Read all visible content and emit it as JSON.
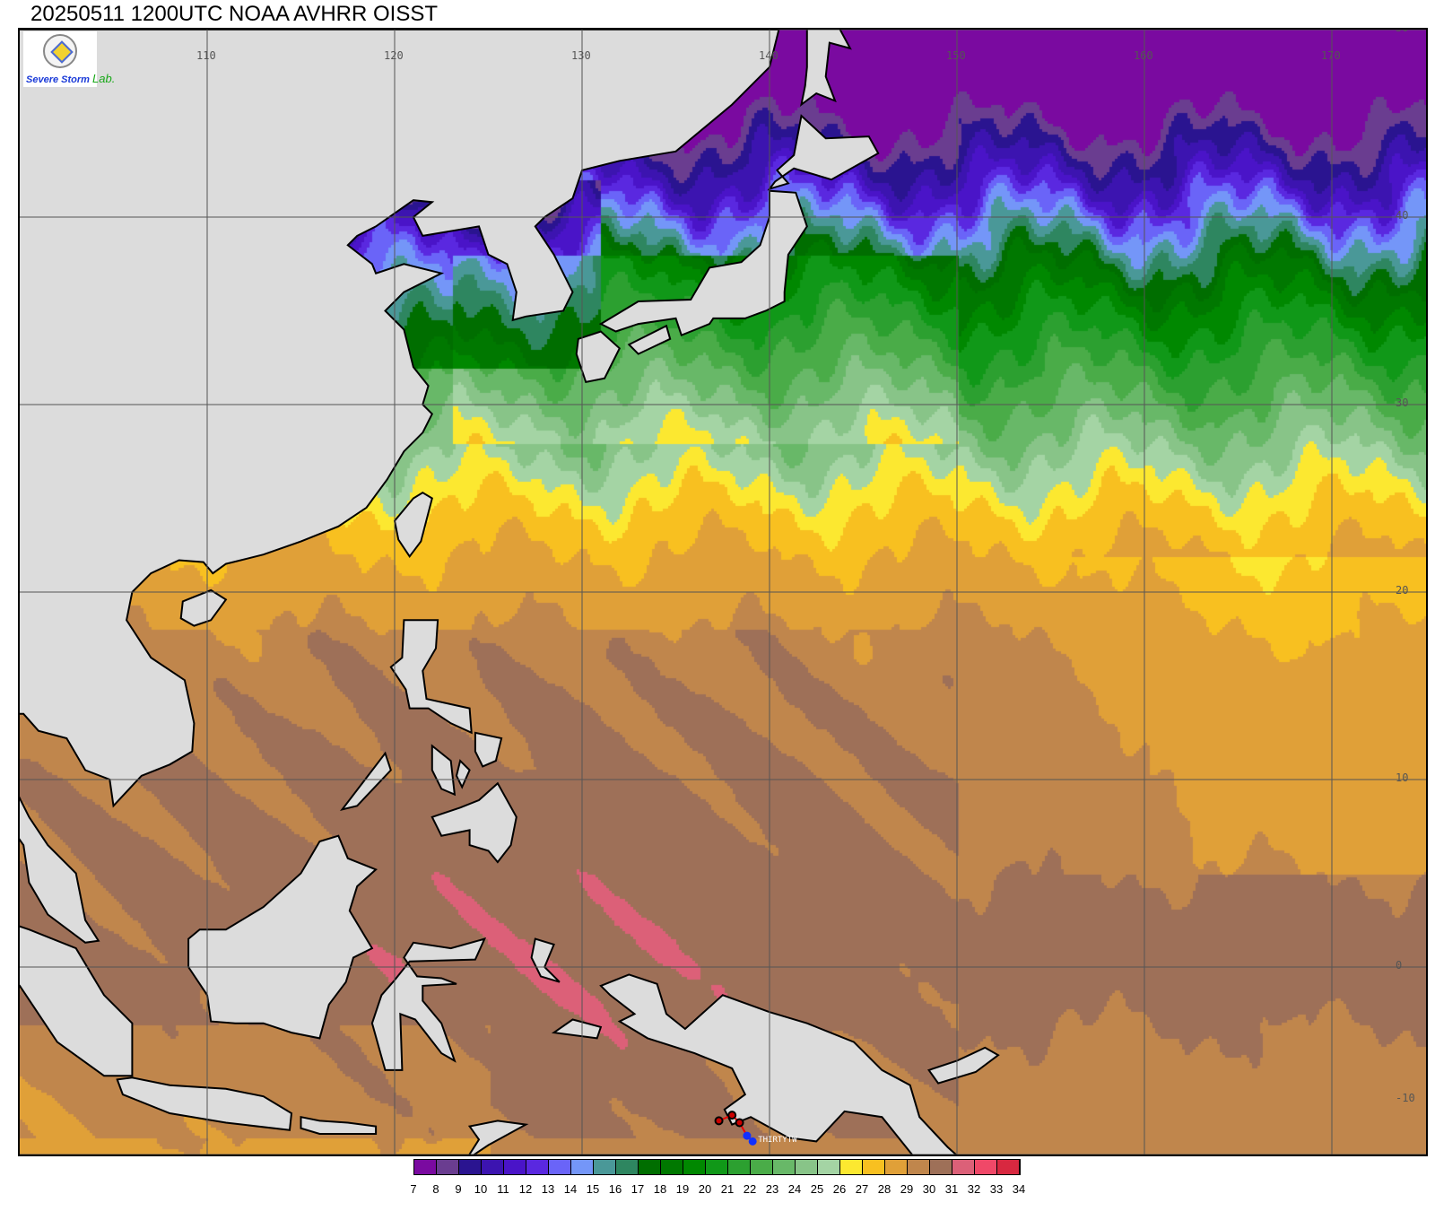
{
  "title": "20250511 1200UTC NOAA AVHRR OISST",
  "logo": {
    "seal_text": "Severe Storm Lab seal",
    "part1": "Severe Storm",
    "part2": "Lab."
  },
  "map_extent": {
    "lon_min": 100,
    "lon_max": 175,
    "lat_min": -10,
    "lat_max": 50
  },
  "lon_labels": [
    "110",
    "120",
    "130",
    "140",
    "150",
    "160",
    "170"
  ],
  "lat_labels": [
    "50",
    "40",
    "30",
    "20",
    "10",
    "0",
    "-10"
  ],
  "colorbar": {
    "labels": [
      "7",
      "8",
      "9",
      "10",
      "11",
      "12",
      "13",
      "14",
      "15",
      "16",
      "17",
      "18",
      "19",
      "20",
      "21",
      "22",
      "23",
      "24",
      "25",
      "26",
      "27",
      "28",
      "29",
      "30",
      "31",
      "32",
      "33",
      "34"
    ],
    "colors": [
      "#7a0aa0",
      "#6a3d90",
      "#2a1490",
      "#3c14b0",
      "#4a14c8",
      "#5a28e0",
      "#6a64f8",
      "#7496f8",
      "#4a9898",
      "#2e8660",
      "#006e00",
      "#007800",
      "#008800",
      "#109818",
      "#2ca030",
      "#4aac48",
      "#68b868",
      "#88c488",
      "#a4d4a4",
      "#fce830",
      "#f8c020",
      "#e0a038",
      "#c0864c",
      "#9e7058",
      "#dc6078",
      "#f04868",
      "#d82840"
    ]
  },
  "land_color": "#dcdcdc",
  "storm": {
    "name": "THIRTYTW",
    "track": [
      [
        137.3,
        -8.2
      ],
      [
        138.0,
        -7.9
      ],
      [
        138.4,
        -8.3
      ],
      [
        138.8,
        -9.0
      ],
      [
        139.1,
        -9.3
      ]
    ]
  }
}
